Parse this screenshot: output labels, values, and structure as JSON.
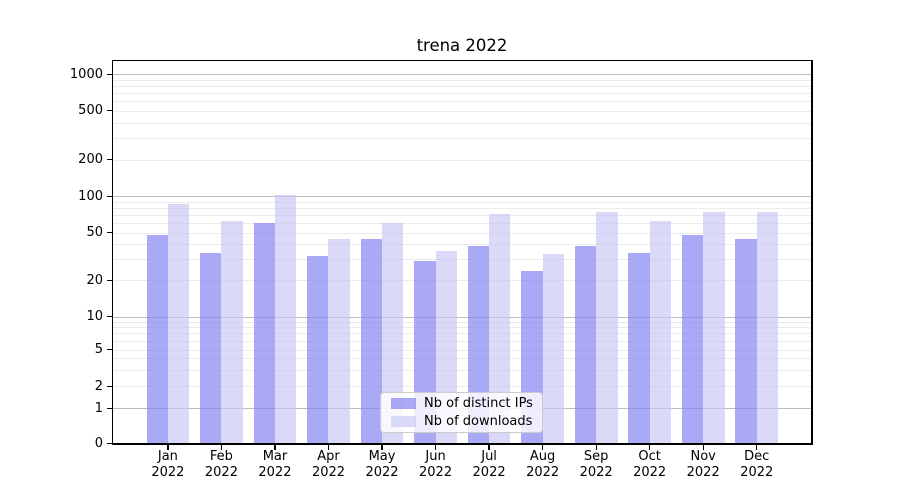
{
  "title": "trena 2022",
  "chart_data": {
    "type": "bar",
    "title": "trena 2022",
    "categories": [
      "Jan 2022",
      "Feb 2022",
      "Mar 2022",
      "Apr 2022",
      "May 2022",
      "Jun 2022",
      "Jul 2022",
      "Aug 2022",
      "Sep 2022",
      "Oct 2022",
      "Nov 2022",
      "Dec 2022"
    ],
    "series": [
      {
        "name": "Nb of distinct IPs",
        "values": [
          48,
          34,
          60,
          32,
          44,
          29,
          39,
          24,
          39,
          34,
          48,
          44
        ],
        "color": "#8484f1",
        "alpha": 0.7
      },
      {
        "name": "Nb of downloads",
        "values": [
          86,
          62,
          101,
          44,
          60,
          35,
          71,
          33,
          74,
          62,
          74,
          74
        ],
        "color": "#c6c6f4",
        "alpha": 0.65
      }
    ],
    "xlabel": "",
    "ylabel": "",
    "yscale": "symlog",
    "yticks": [
      1000,
      500,
      200,
      100,
      50,
      20,
      10,
      5,
      2,
      1,
      0
    ],
    "ylim": [
      0,
      1280
    ],
    "grid": true,
    "legend_position": "lower center"
  },
  "colors": {
    "bar_ips_rendered": "#a9a9f0",
    "bar_downloads_rendered": "#dadaf8",
    "major_grid": "#bdbdbd",
    "minor_grid": "#ebebeb",
    "spine": "#000000",
    "legend_border": "#cccccc",
    "text": "#000000"
  }
}
